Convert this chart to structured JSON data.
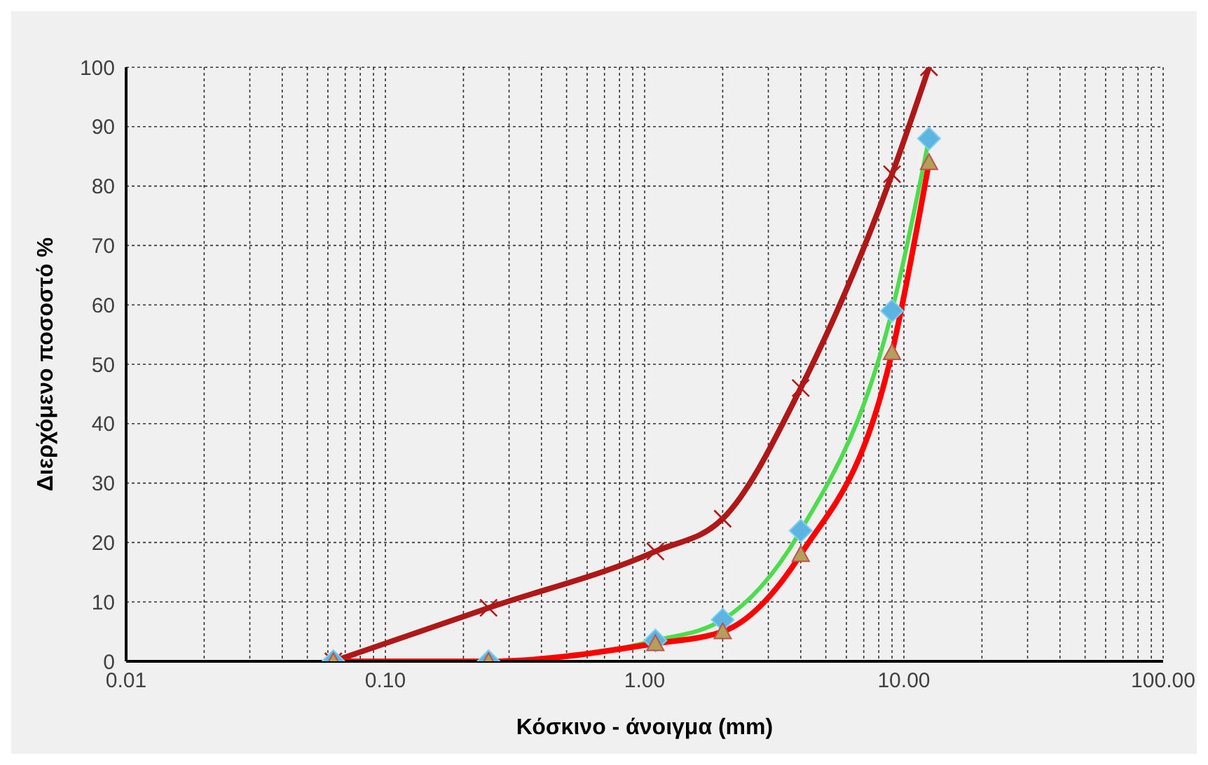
{
  "chart_data": {
    "type": "line",
    "xlabel": "Κόσκινο - άνοιγμα (mm)",
    "ylabel": "Διερχόμενο ποσοστό %",
    "log": "x",
    "grid": true,
    "legend": false,
    "xlim": [
      0.01,
      100
    ],
    "ylim": [
      0,
      100
    ],
    "xticks": [
      {
        "value": 0.01,
        "label": "0.01"
      },
      {
        "value": 0.02,
        "label": null
      },
      {
        "value": 0.03,
        "label": null
      },
      {
        "value": 0.04,
        "label": null
      },
      {
        "value": 0.05,
        "label": null
      },
      {
        "value": 0.06,
        "label": null
      },
      {
        "value": 0.07,
        "label": null
      },
      {
        "value": 0.08,
        "label": null
      },
      {
        "value": 0.09,
        "label": null
      },
      {
        "value": 0.1,
        "label": "0.10"
      },
      {
        "value": 0.2,
        "label": null
      },
      {
        "value": 0.3,
        "label": null
      },
      {
        "value": 0.4,
        "label": null
      },
      {
        "value": 0.5,
        "label": null
      },
      {
        "value": 0.6,
        "label": null
      },
      {
        "value": 0.7,
        "label": null
      },
      {
        "value": 0.8,
        "label": null
      },
      {
        "value": 0.9,
        "label": null
      },
      {
        "value": 1,
        "label": "1.00"
      },
      {
        "value": 2,
        "label": null
      },
      {
        "value": 3,
        "label": null
      },
      {
        "value": 4,
        "label": null
      },
      {
        "value": 5,
        "label": null
      },
      {
        "value": 6,
        "label": null
      },
      {
        "value": 7,
        "label": null
      },
      {
        "value": 8,
        "label": null
      },
      {
        "value": 9,
        "label": null
      },
      {
        "value": 10,
        "label": "10.00"
      },
      {
        "value": 20,
        "label": null
      },
      {
        "value": 30,
        "label": null
      },
      {
        "value": 40,
        "label": null
      },
      {
        "value": 50,
        "label": null
      },
      {
        "value": 60,
        "label": null
      },
      {
        "value": 70,
        "label": null
      },
      {
        "value": 80,
        "label": null
      },
      {
        "value": 90,
        "label": null
      },
      {
        "value": 100,
        "label": "100.00"
      }
    ],
    "yticks": [
      0,
      10,
      20,
      30,
      40,
      50,
      60,
      70,
      80,
      90,
      100
    ],
    "series": [
      {
        "color": "#b01818",
        "marker": "cross",
        "x": [
          0.063,
          0.25,
          1.1,
          2,
          4,
          9,
          12.5
        ],
        "values": [
          0,
          9,
          18.5,
          24,
          46,
          82,
          100
        ]
      },
      {
        "color": "#4cdc4c",
        "marker": "diamond",
        "x": [
          0.063,
          0.25,
          1.1,
          2,
          4,
          9,
          12.5
        ],
        "values": [
          0,
          0,
          3.5,
          7,
          22,
          59,
          88
        ]
      },
      {
        "color": "#ff0000",
        "marker": "triangle",
        "x": [
          0.063,
          0.25,
          1.1,
          2,
          4,
          9,
          12.5
        ],
        "values": [
          0,
          0,
          3,
          5,
          18,
          52,
          84
        ]
      }
    ]
  }
}
